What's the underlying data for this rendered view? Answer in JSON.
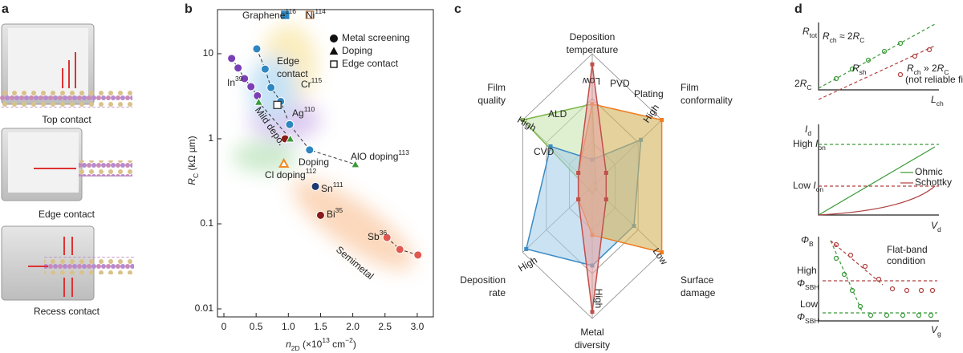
{
  "panel_labels": [
    "a",
    "b",
    "c",
    "d"
  ],
  "panel_a": {
    "labels": [
      "Top contact",
      "Edge contact",
      "Recess contact"
    ]
  },
  "chart_data": {
    "type": "scatter",
    "log_y": true,
    "legend_loc": "upper right",
    "xlabel": [
      {
        "t": "n"
      },
      {
        "sub": "2D"
      },
      {
        "t": " (×10"
      },
      {
        "sup": "13"
      },
      {
        "t": " cm"
      },
      {
        "sup": "−2"
      },
      {
        "t": ")"
      }
    ],
    "ylabel": [
      {
        "t": "R"
      },
      {
        "sub": "C"
      },
      {
        "t": " (kΩ µm)"
      }
    ],
    "xlim": [
      0,
      3.25
    ],
    "ylim": [
      0.01,
      33
    ],
    "xticks": [
      0,
      0.5,
      {
        "value": 1,
        "label": "1.0"
      },
      1.5,
      {
        "value": 2,
        "label": "2.0"
      },
      2.5,
      {
        "value": 3,
        "label": "3.0"
      }
    ],
    "yticks": [
      0.01,
      0.1,
      1,
      10
    ],
    "series": [
      {
        "name": "Metal screening",
        "marker": "circle",
        "color": "#111111",
        "x": [
          0.12,
          0.22,
          0.32,
          0.42,
          0.52,
          0.51,
          0.64,
          0.73,
          0.88,
          1.02,
          1.33,
          0.95,
          1.5,
          1.42,
          2.53,
          2.73,
          3.01
        ],
        "values": [
          8.8,
          6.8,
          5.1,
          4.1,
          3.2,
          11.4,
          6.6,
          4.0,
          2.75,
          1.47,
          0.74,
          1.0,
          0.126,
          0.275,
          0.069,
          0.05,
          0.043
        ],
        "colors": [
          "#7b3fb5",
          "#7b3fb5",
          "#7b3fb5",
          "#7b3fb5",
          "#7b3fb5",
          "#2e86c1",
          "#2e86c1",
          "#2e86c1",
          "#2e86c1",
          "#2e86c1",
          "#2e86c1",
          "#8b1a1a",
          "#8b1a1a",
          "#1f3a6e",
          "#e0584f",
          "#e0584f",
          "#e0584f"
        ]
      },
      {
        "name": "Doping",
        "marker": "triangle",
        "color": "#111111",
        "x": [
          0.54,
          1.03,
          2.04,
          0.93
        ],
        "values": [
          2.7,
          1.0,
          0.5,
          0.51
        ],
        "colors": [
          "#3a9a3a",
          "#3a9a3a",
          "#3a9a3a",
          "#ffffff"
        ],
        "edge_colors": [
          "#ffffff",
          "#ffffff",
          "#ffffff",
          "#f08a24"
        ]
      },
      {
        "name": "Edge contact",
        "marker": "square",
        "color": "#111111",
        "x": [
          0.95,
          1.33,
          0.83
        ],
        "values": [
          28.6,
          28.6,
          2.5
        ],
        "colors": [
          "#2e86c1",
          "#ffffff",
          "#ffffff"
        ],
        "edge_colors": [
          "#2e86c1",
          "#c98a5a",
          "#333333"
        ]
      }
    ],
    "annotations": [
      [
        {
          "t": "Graphene"
        },
        {
          "sup": "116"
        }
      ],
      [
        {
          "t": "Ni"
        },
        {
          "sup": "114"
        }
      ],
      [
        {
          "t": "Cr"
        },
        {
          "sup": "115"
        }
      ],
      [
        {
          "t": "In"
        },
        {
          "sup": "39"
        }
      ],
      [
        {
          "t": "Ag"
        },
        {
          "sup": "110"
        }
      ],
      [
        {
          "t": "AlO doping"
        },
        {
          "sup": "113"
        }
      ],
      [
        {
          "t": "Cl doping"
        },
        {
          "sup": "112"
        }
      ],
      [
        {
          "t": "Sn"
        },
        {
          "sup": "111"
        }
      ],
      [
        {
          "t": "Bi"
        },
        {
          "sup": "35"
        }
      ],
      [
        {
          "t": "Sb"
        },
        {
          "sup": "36"
        }
      ]
    ],
    "region_labels": [
      "Edge",
      "contact",
      "Mild depo.",
      "Doping",
      "Semimetal"
    ]
  },
  "panel_c": {
    "axes": [
      [
        "Deposition",
        "temperature"
      ],
      [
        "Film",
        "conformality"
      ],
      [
        "Surface",
        "damage"
      ],
      [
        "Metal",
        "diversity"
      ],
      [
        "Deposition",
        "rate"
      ],
      [
        "Film",
        "quality"
      ]
    ],
    "methods": [
      "PVD",
      "Plating",
      "ALD",
      "CVD"
    ],
    "scale_labels": [
      "Low",
      "High",
      "Low",
      "High",
      "High",
      "High"
    ]
  },
  "panel_d": {
    "labels": [
      [
        {
          "t": "R"
        },
        {
          "sub": "tot"
        }
      ],
      [
        {
          "t": "R"
        },
        {
          "sub": "ch"
        },
        {
          "t": " ≈ 2"
        },
        {
          "t": "R"
        },
        {
          "sub": "C"
        }
      ],
      [
        {
          "t": "R"
        },
        {
          "sub": "sh"
        }
      ],
      [
        {
          "t": "R"
        },
        {
          "sub": "ch"
        },
        {
          "t": " » 2"
        },
        {
          "t": "R"
        },
        {
          "sub": "C"
        }
      ],
      [
        {
          "t": "(not reliable fitting)"
        }
      ],
      [
        {
          "t": "2"
        },
        {
          "t": "R"
        },
        {
          "sub": "C"
        }
      ],
      [
        {
          "t": "L"
        },
        {
          "sub": "ch"
        }
      ],
      [
        {
          "t": "I"
        },
        {
          "sub": "d"
        }
      ],
      [
        {
          "t": "Ohmic"
        }
      ],
      [
        {
          "t": "Schottky"
        }
      ],
      [
        {
          "t": "High "
        },
        {
          "t": "I"
        },
        {
          "sub": "on"
        }
      ],
      [
        {
          "t": "Low "
        },
        {
          "t": "I"
        },
        {
          "sub": "on"
        }
      ],
      [
        {
          "t": "V"
        },
        {
          "sub": "d"
        }
      ],
      [
        {
          "t": "Φ"
        },
        {
          "sub": "B"
        }
      ],
      [
        {
          "t": "Flat-band"
        }
      ],
      [
        {
          "t": "condition"
        }
      ],
      [
        {
          "t": "High"
        }
      ],
      [
        {
          "t": "Φ"
        },
        {
          "sub": "SBH"
        }
      ],
      [
        {
          "t": "Low"
        }
      ],
      [
        {
          "t": "Φ"
        },
        {
          "sub": "SBH"
        }
      ],
      [
        {
          "t": "V"
        },
        {
          "sub": "g"
        }
      ]
    ]
  }
}
